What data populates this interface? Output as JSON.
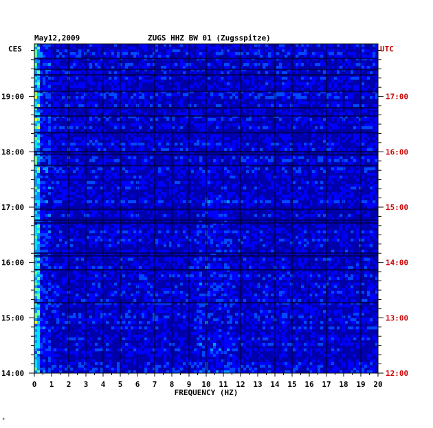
{
  "header": {
    "date": "May12,2009",
    "station": "ZUGS HHZ BW 01 (Zugsspitze)",
    "left_tz": "CES",
    "right_tz": "UTC"
  },
  "footer": {
    "mark": "*"
  },
  "colors": {
    "axis": "#000000",
    "utc_labels": "#cc0000",
    "background_spectrum": "#0000a8",
    "grid": "#000000"
  },
  "chart_data": {
    "type": "heatmap",
    "title": "ZUGS HHZ BW 01 (Zugsspitze)",
    "xlabel": "FREQUENCY (HZ)",
    "ylabel": "",
    "x_range": [
      0,
      20
    ],
    "x_ticks": [
      "0",
      "1",
      "2",
      "3",
      "4",
      "5",
      "6",
      "7",
      "8",
      "9",
      "10",
      "11",
      "12",
      "13",
      "14",
      "15",
      "16",
      "17",
      "18",
      "19",
      "20"
    ],
    "y_left_ticks": [
      "14:00",
      "15:00",
      "16:00",
      "17:00",
      "18:00",
      "19:00"
    ],
    "y_right_ticks": [
      "12:00",
      "13:00",
      "14:00",
      "15:00",
      "16:00",
      "17:00"
    ],
    "y_range_left_hours": [
      14.0,
      19.95
    ],
    "colormap": [
      "#00007a",
      "#0000b0",
      "#0000ff",
      "#0048ff",
      "#0096ff",
      "#00e0ff",
      "#60ffa0",
      "#d8ff30",
      "#ffd000",
      "#ff6000",
      "#e00000"
    ],
    "grid": true
  }
}
